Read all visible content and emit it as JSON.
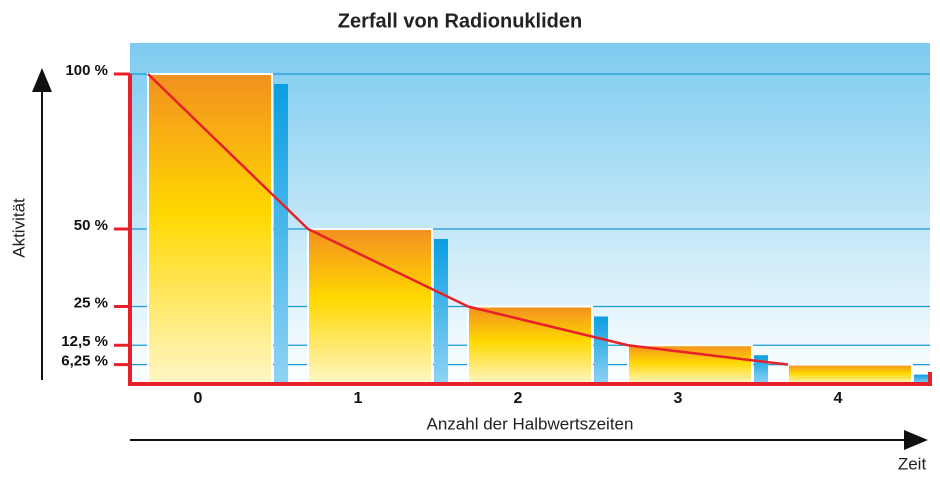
{
  "chart_data": {
    "type": "bar",
    "title": "Zerfall von Radionukliden",
    "categories": [
      "0",
      "1",
      "2",
      "3",
      "4"
    ],
    "values": [
      100,
      50,
      25,
      12.5,
      6.25
    ],
    "x_label": "Anzahl der Halbwertszeiten",
    "y_label": "Aktivität",
    "time_label": "Zeit",
    "ylim": [
      0,
      110
    ],
    "yticks": [
      {
        "value": 100,
        "label": "100 %"
      },
      {
        "value": 50,
        "label": "50 %"
      },
      {
        "value": 25,
        "label": "25 %"
      },
      {
        "value": 12.5,
        "label": "12,5 %"
      },
      {
        "value": 6.25,
        "label": "6,25 %"
      }
    ],
    "grid": true
  }
}
